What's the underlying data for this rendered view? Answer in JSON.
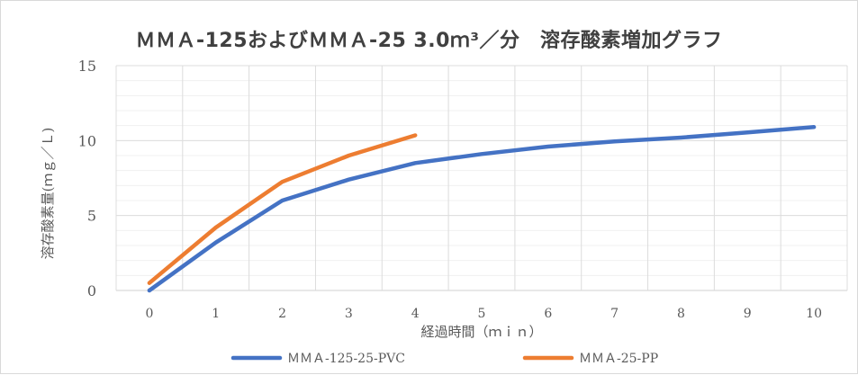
{
  "chart_data": {
    "type": "line",
    "title": "ＭＭＡ-125およびＭＭＡ-25 3.0ｍ³／分　溶存酸素増加グラフ",
    "xlabel": "経過時間（ｍｉｎ）",
    "ylabel": "溶存酸素量(ｍｇ／Ｌ)",
    "xlim": [
      -0.5,
      10.5
    ],
    "ylim": [
      0,
      15
    ],
    "x_ticks": [
      "0",
      "1",
      "2",
      "3",
      "4",
      "5",
      "6",
      "7",
      "8",
      "9",
      "10"
    ],
    "y_ticks": [
      "0",
      "5",
      "10",
      "15"
    ],
    "grid": true,
    "legend_position": "bottom",
    "series": [
      {
        "name": "ＭＭＡ-125-25-PVC",
        "color": "#4472c4",
        "x": [
          0,
          1,
          2,
          3,
          4,
          5,
          6,
          7,
          8,
          9,
          10
        ],
        "y": [
          0,
          3.2,
          6.0,
          7.4,
          8.5,
          9.1,
          9.6,
          9.95,
          10.2,
          10.55,
          10.9
        ]
      },
      {
        "name": "ＭＭＡ-25-PP",
        "color": "#ed7d31",
        "x": [
          0,
          1,
          2,
          3,
          4
        ],
        "y": [
          0.5,
          4.2,
          7.25,
          9.0,
          10.35
        ]
      }
    ]
  }
}
